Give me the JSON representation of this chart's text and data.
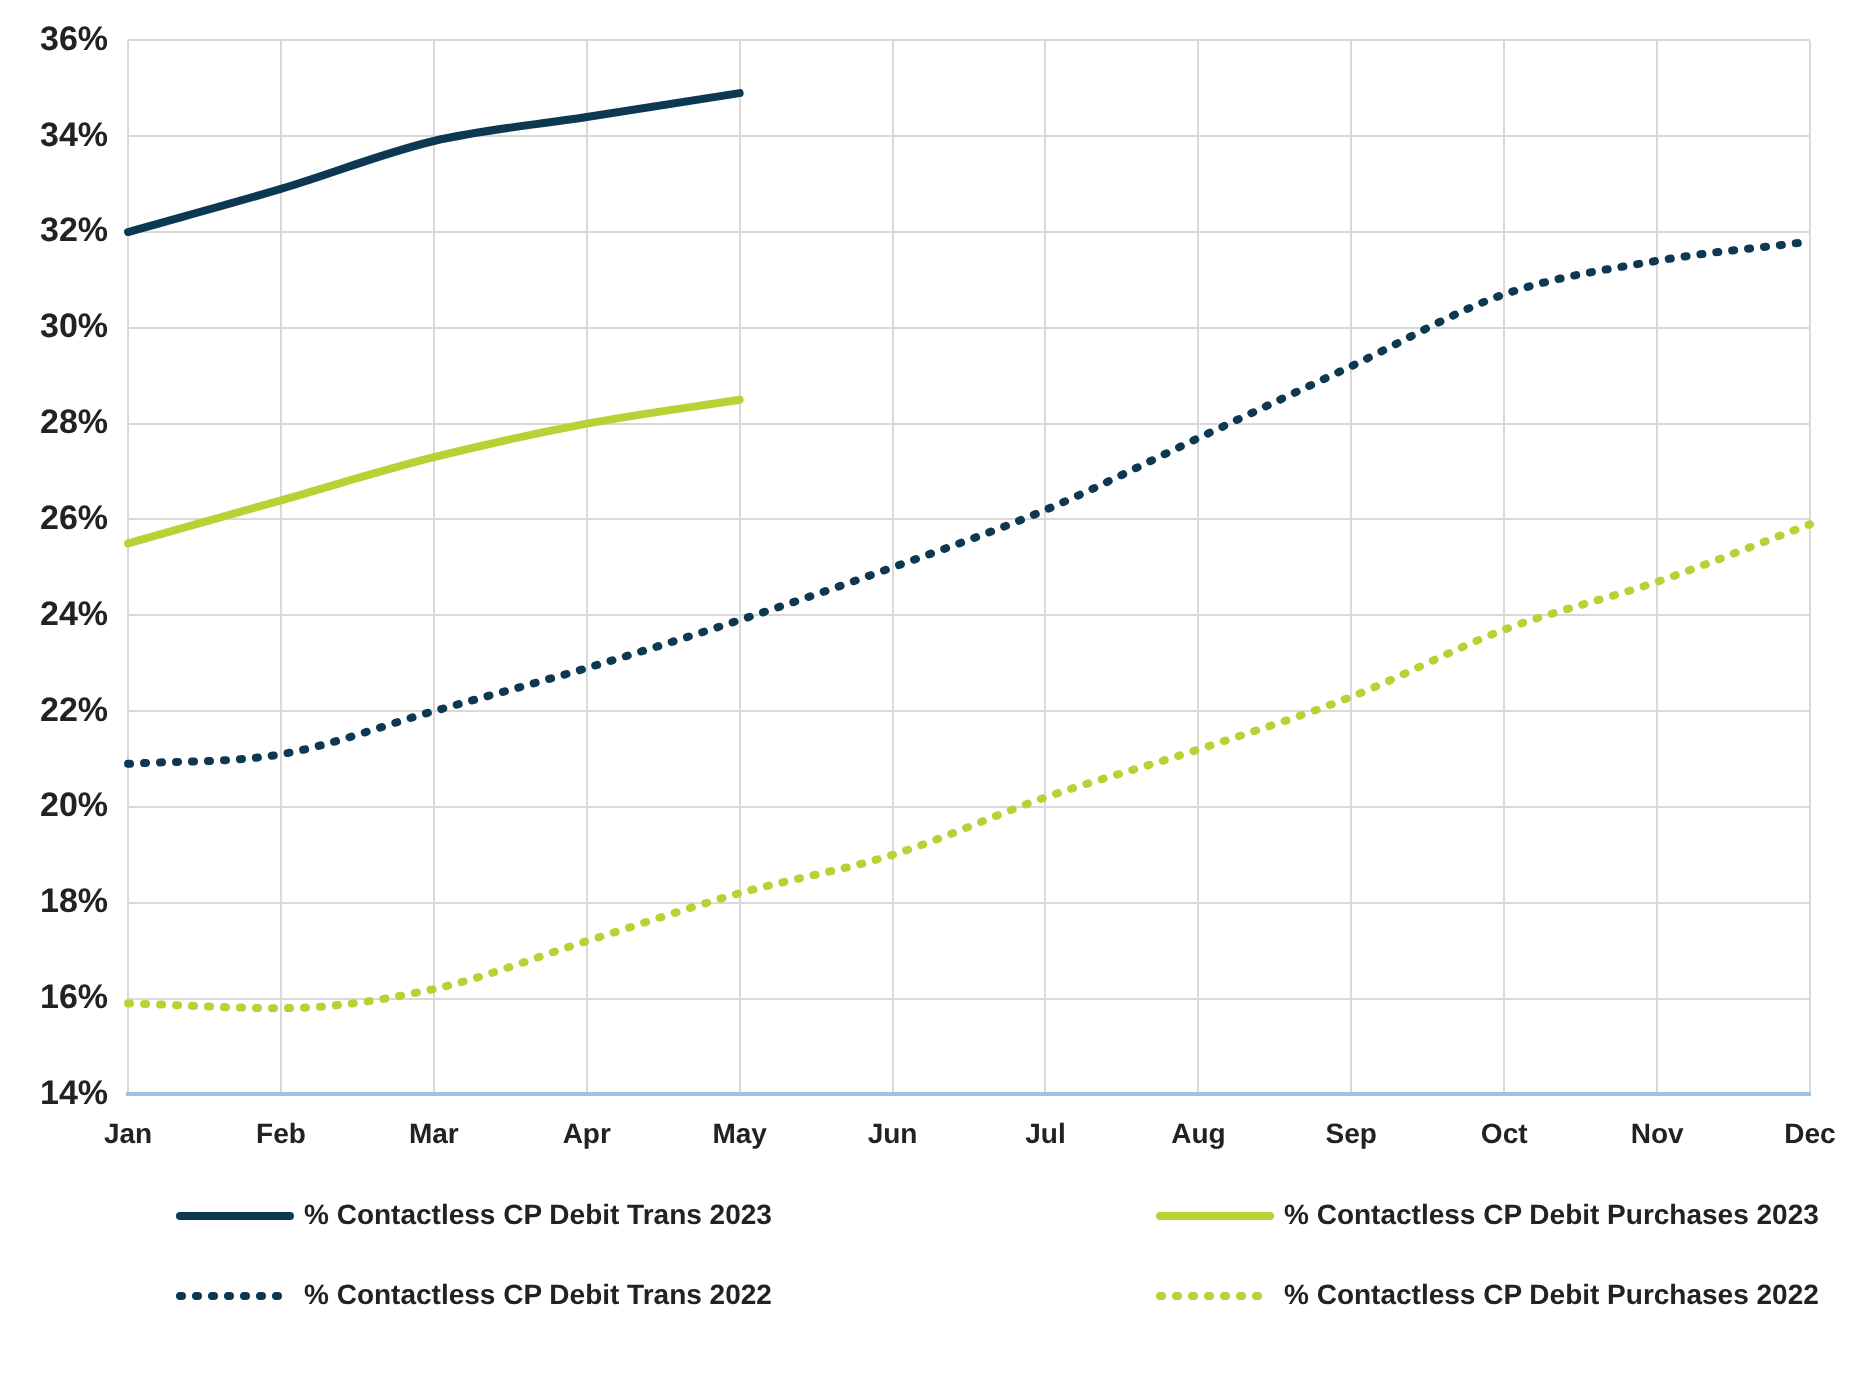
{
  "chart_data": {
    "type": "line",
    "categories": [
      "Jan",
      "Feb",
      "Mar",
      "Apr",
      "May",
      "Jun",
      "Jul",
      "Aug",
      "Sep",
      "Oct",
      "Nov",
      "Dec"
    ],
    "ylim": [
      14,
      36
    ],
    "yticks": [
      {
        "value": 14,
        "label": "14%"
      },
      {
        "value": 16,
        "label": "16%"
      },
      {
        "value": 18,
        "label": "18%"
      },
      {
        "value": 20,
        "label": "20%"
      },
      {
        "value": 22,
        "label": "22%"
      },
      {
        "value": 24,
        "label": "24%"
      },
      {
        "value": 26,
        "label": "26%"
      },
      {
        "value": 28,
        "label": "28%"
      },
      {
        "value": 30,
        "label": "30%"
      },
      {
        "value": 32,
        "label": "32%"
      },
      {
        "value": 34,
        "label": "34%"
      },
      {
        "value": 36,
        "label": "36%"
      }
    ],
    "grid": true,
    "legend": "bottom",
    "marker": "none",
    "series": [
      {
        "name": "% Contactless CP Debit Trans 2023",
        "color": "#0d3852",
        "line_style": "solid",
        "values": [
          32.0,
          32.9,
          33.9,
          34.4,
          34.9,
          null,
          null,
          null,
          null,
          null,
          null,
          null
        ]
      },
      {
        "name": "% Contactless CP Debit Purchases 2023",
        "color": "#b5d334",
        "line_style": "solid",
        "values": [
          25.5,
          26.4,
          27.3,
          28.0,
          28.5,
          null,
          null,
          null,
          null,
          null,
          null,
          null
        ]
      },
      {
        "name": "% Contactless CP Debit Trans 2022",
        "color": "#0d3852",
        "line_style": "dotted",
        "values": [
          20.9,
          21.1,
          22.0,
          22.9,
          23.9,
          25.0,
          26.2,
          27.7,
          29.2,
          30.7,
          31.4,
          31.8
        ]
      },
      {
        "name": "% Contactless CP Debit Purchases 2022",
        "color": "#b5d334",
        "line_style": "dotted",
        "values": [
          15.9,
          15.8,
          16.2,
          17.2,
          18.2,
          19.0,
          20.2,
          21.2,
          22.3,
          23.7,
          24.7,
          25.9
        ]
      }
    ]
  }
}
